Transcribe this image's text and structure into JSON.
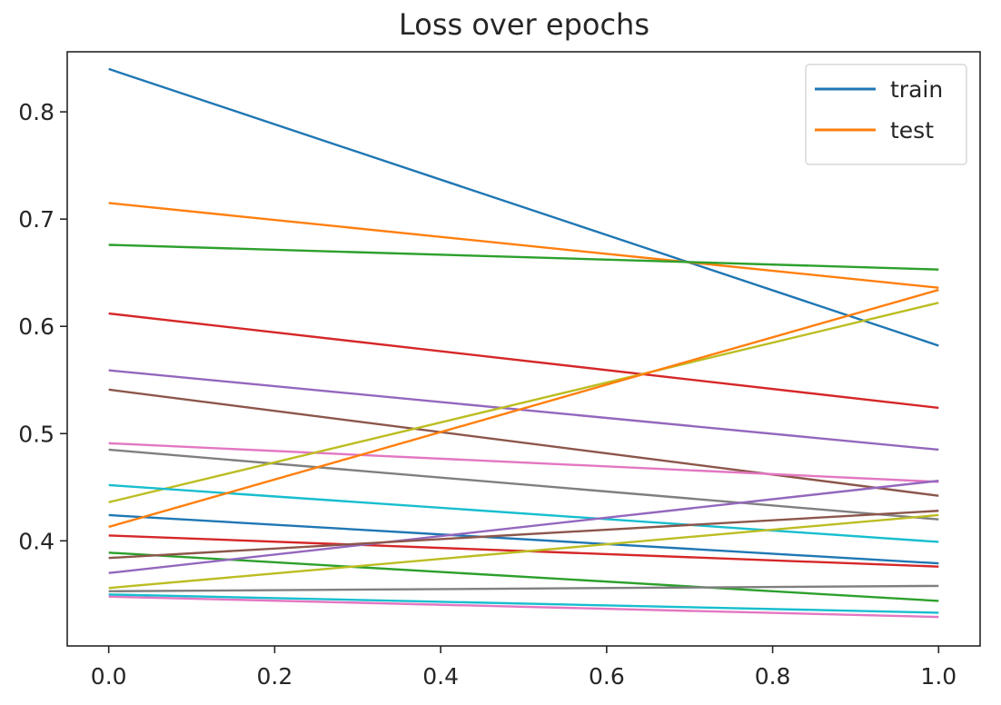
{
  "chart_data": {
    "type": "line",
    "title": "Loss over epochs",
    "xlabel": "",
    "ylabel": "",
    "xlim": [
      -0.05,
      1.05
    ],
    "ylim": [
      0.302,
      0.856
    ],
    "x": [
      0.0,
      1.0
    ],
    "x_ticks": [
      0.0,
      0.2,
      0.4,
      0.6,
      0.8,
      1.0
    ],
    "x_tick_labels": [
      "0.0",
      "0.2",
      "0.4",
      "0.6",
      "0.8",
      "1.0"
    ],
    "y_ticks": [
      0.4,
      0.5,
      0.6,
      0.7,
      0.8
    ],
    "y_tick_labels": [
      "0.4",
      "0.5",
      "0.6",
      "0.7",
      "0.8"
    ],
    "grid": false,
    "legend": {
      "placement": "top-right",
      "entries": [
        "train",
        "test"
      ]
    },
    "series": [
      {
        "name": "train",
        "color": "#1f77b4",
        "values": [
          0.84,
          0.582
        ]
      },
      {
        "name": "test",
        "color": "#ff7f0e",
        "values": [
          0.715,
          0.636
        ]
      },
      {
        "color": "#2ca02c",
        "values": [
          0.676,
          0.653
        ]
      },
      {
        "color": "#d62728",
        "values": [
          0.612,
          0.524
        ]
      },
      {
        "color": "#9467bd",
        "values": [
          0.559,
          0.485
        ]
      },
      {
        "color": "#8c564b",
        "values": [
          0.541,
          0.442
        ]
      },
      {
        "color": "#e377c2",
        "values": [
          0.491,
          0.455
        ]
      },
      {
        "color": "#7f7f7f",
        "values": [
          0.485,
          0.42
        ]
      },
      {
        "color": "#bcbd22",
        "values": [
          0.436,
          0.622
        ]
      },
      {
        "color": "#17becf",
        "values": [
          0.452,
          0.399
        ]
      },
      {
        "color": "#1f77b4",
        "values": [
          0.424,
          0.379
        ]
      },
      {
        "color": "#ff7f0e",
        "values": [
          0.413,
          0.634
        ]
      },
      {
        "color": "#2ca02c",
        "values": [
          0.389,
          0.344
        ]
      },
      {
        "color": "#d62728",
        "values": [
          0.405,
          0.376
        ]
      },
      {
        "color": "#9467bd",
        "values": [
          0.37,
          0.456
        ]
      },
      {
        "color": "#8c564b",
        "values": [
          0.384,
          0.428
        ]
      },
      {
        "color": "#e377c2",
        "values": [
          0.348,
          0.329
        ]
      },
      {
        "color": "#7f7f7f",
        "values": [
          0.353,
          0.358
        ]
      },
      {
        "color": "#bcbd22",
        "values": [
          0.356,
          0.424
        ]
      },
      {
        "color": "#17becf",
        "values": [
          0.35,
          0.333
        ]
      }
    ]
  }
}
